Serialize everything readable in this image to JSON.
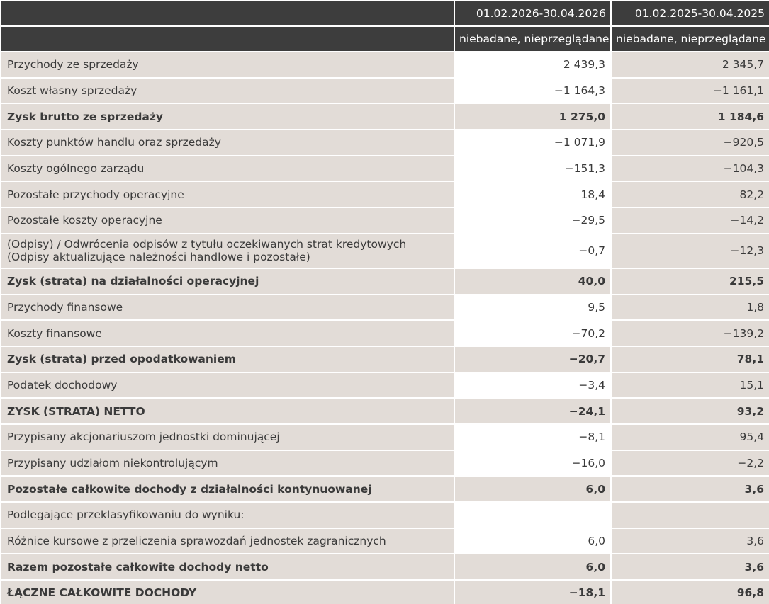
{
  "header": {
    "col1_period": "01.02.2026-30.04.2026",
    "col2_period": "01.02.2025-30.04.2025",
    "col1_status": "niebadane, nieprzeglądane",
    "col2_status": "niebadane, nieprzeglądane"
  },
  "rows": [
    {
      "label": "Przychody ze sprzedaży",
      "v1": "2 439,3",
      "v2": "2 345,7",
      "bold": false
    },
    {
      "label": "Koszt własny sprzedaży",
      "v1": "−1 164,3",
      "v2": "−1 161,1",
      "bold": false
    },
    {
      "label": "Zysk brutto ze sprzedaży",
      "v1": "1 275,0",
      "v2": "1 184,6",
      "bold": true
    },
    {
      "label": "Koszty punktów handlu oraz sprzedaży",
      "v1": "−1 071,9",
      "v2": "−920,5",
      "bold": false
    },
    {
      "label": "Koszty ogólnego zarządu",
      "v1": "−151,3",
      "v2": "−104,3",
      "bold": false
    },
    {
      "label": "Pozostałe przychody operacyjne",
      "v1": "18,4",
      "v2": "82,2",
      "bold": false
    },
    {
      "label": "Pozostałe koszty operacyjne",
      "v1": "−29,5",
      "v2": "−14,2",
      "bold": false
    },
    {
      "label": "(Odpisy) / Odwrócenia odpisów z tytułu oczekiwanych strat kredytowych (Odpisy aktualizujące należności handlowe i pozostałe)",
      "v1": "−0,7",
      "v2": "−12,3",
      "bold": false,
      "tall": true
    },
    {
      "label": "Zysk (strata) na działalności operacyjnej",
      "v1": "40,0",
      "v2": "215,5",
      "bold": true
    },
    {
      "label": "Przychody finansowe",
      "v1": "9,5",
      "v2": "1,8",
      "bold": false
    },
    {
      "label": "Koszty finansowe",
      "v1": "−70,2",
      "v2": "−139,2",
      "bold": false
    },
    {
      "label": "Zysk (strata) przed opodatkowaniem",
      "v1": "−20,7",
      "v2": "78,1",
      "bold": true
    },
    {
      "label": "Podatek dochodowy",
      "v1": "−3,4",
      "v2": "15,1",
      "bold": false
    },
    {
      "label": "ZYSK (STRATA) NETTO",
      "v1": "−24,1",
      "v2": "93,2",
      "bold": true
    },
    {
      "label": "Przypisany akcjonariuszom jednostki dominującej",
      "v1": "−8,1",
      "v2": "95,4",
      "bold": false
    },
    {
      "label": "Przypisany udziałom niekontrolującym",
      "v1": "−16,0",
      "v2": "−2,2",
      "bold": false
    },
    {
      "label": "Pozostałe całkowite dochody z działalności kontynuowanej",
      "v1": "6,0",
      "v2": "3,6",
      "bold": true
    },
    {
      "label": "Podlegające przeklasyfikowaniu do wyniku:",
      "v1": "",
      "v2": "",
      "bold": false,
      "subhead": true
    },
    {
      "label": "Różnice kursowe z przeliczenia sprawozdań jednostek zagranicznych",
      "v1": "6,0",
      "v2": "3,6",
      "bold": false
    },
    {
      "label": "Razem pozostałe całkowite dochody netto",
      "v1": "6,0",
      "v2": "3,6",
      "bold": true
    },
    {
      "label": "ŁĄCZNE CAŁKOWITE DOCHODY",
      "v1": "−18,1",
      "v2": "96,8",
      "bold": true
    }
  ]
}
